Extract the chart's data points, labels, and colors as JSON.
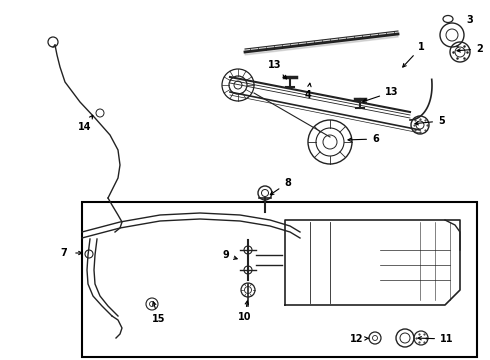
{
  "bg_color": "#ffffff",
  "line_color": "#222222",
  "text_color": "#000000",
  "border_color": "#000000",
  "fig_width": 4.9,
  "fig_height": 3.6,
  "dpi": 100
}
